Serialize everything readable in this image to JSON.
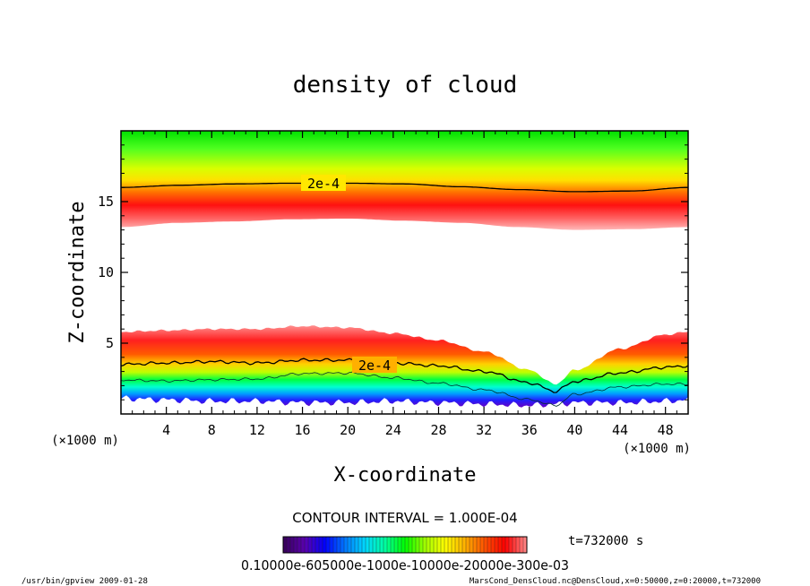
{
  "chart_data": {
    "type": "heatmap",
    "title": "density of cloud",
    "xlabel": "X-coordinate",
    "ylabel": "Z-coordinate",
    "x_unit": "(×1000 m)",
    "z_unit": "(×1000 m)",
    "xlim": [
      0,
      50
    ],
    "zlim": [
      0,
      20
    ],
    "x_ticks": [
      4,
      8,
      12,
      16,
      20,
      24,
      28,
      32,
      36,
      40,
      44,
      48
    ],
    "z_ticks": [
      5,
      10,
      15
    ],
    "contour_label": "2e-4",
    "contour_level": 0.0002,
    "contour_interval_text": "CONTOUR INTERVAL = 1.000E-04",
    "colorbar_ticks_text": "0.10000e-605000e-1000e-10000e-20000e-300e-03",
    "colorbar_colors": [
      "#3a0060",
      "#5a00b0",
      "#0000ff",
      "#0078ff",
      "#00d8ff",
      "#00ffa0",
      "#00ff00",
      "#a0ff00",
      "#ffff00",
      "#ffb000",
      "#ff5000",
      "#ff0000",
      "#ff8080"
    ],
    "time_label": "t=732000 s",
    "footer_left": "/usr/bin/gpview   2009-01-28",
    "footer_right": "MarsCond_DensCloud.nc@DensCloud,x=0:50000,z=0:20000,t=732000",
    "upper_layer": {
      "x": [
        0,
        5,
        10,
        15,
        20,
        25,
        30,
        35,
        40,
        45,
        50
      ],
      "bottom": [
        13.2,
        13.5,
        13.6,
        13.75,
        13.8,
        13.65,
        13.5,
        13.2,
        13.0,
        13.05,
        13.2
      ],
      "contour_2e4": [
        16.0,
        16.15,
        16.25,
        16.3,
        16.3,
        16.25,
        16.05,
        15.85,
        15.7,
        15.75,
        16.0
      ]
    },
    "lower_layer": {
      "x": [
        0,
        4,
        8,
        12,
        16,
        20,
        24,
        28,
        32,
        36,
        38.3,
        40,
        44,
        48,
        50
      ],
      "top": [
        5.8,
        5.9,
        6.0,
        6.0,
        6.2,
        6.1,
        5.7,
        5.2,
        4.4,
        3.1,
        2.1,
        3.1,
        4.6,
        5.6,
        5.8
      ],
      "contour_2e4": [
        3.5,
        3.6,
        3.7,
        3.6,
        3.8,
        3.8,
        3.6,
        3.4,
        3.0,
        2.2,
        1.6,
        2.3,
        2.9,
        3.3,
        3.4
      ],
      "ground": [
        1.1,
        1.0,
        0.9,
        0.9,
        0.8,
        0.8,
        0.9,
        0.8,
        0.7,
        0.6,
        0.7,
        0.8,
        0.8,
        0.9,
        1.0
      ]
    }
  }
}
